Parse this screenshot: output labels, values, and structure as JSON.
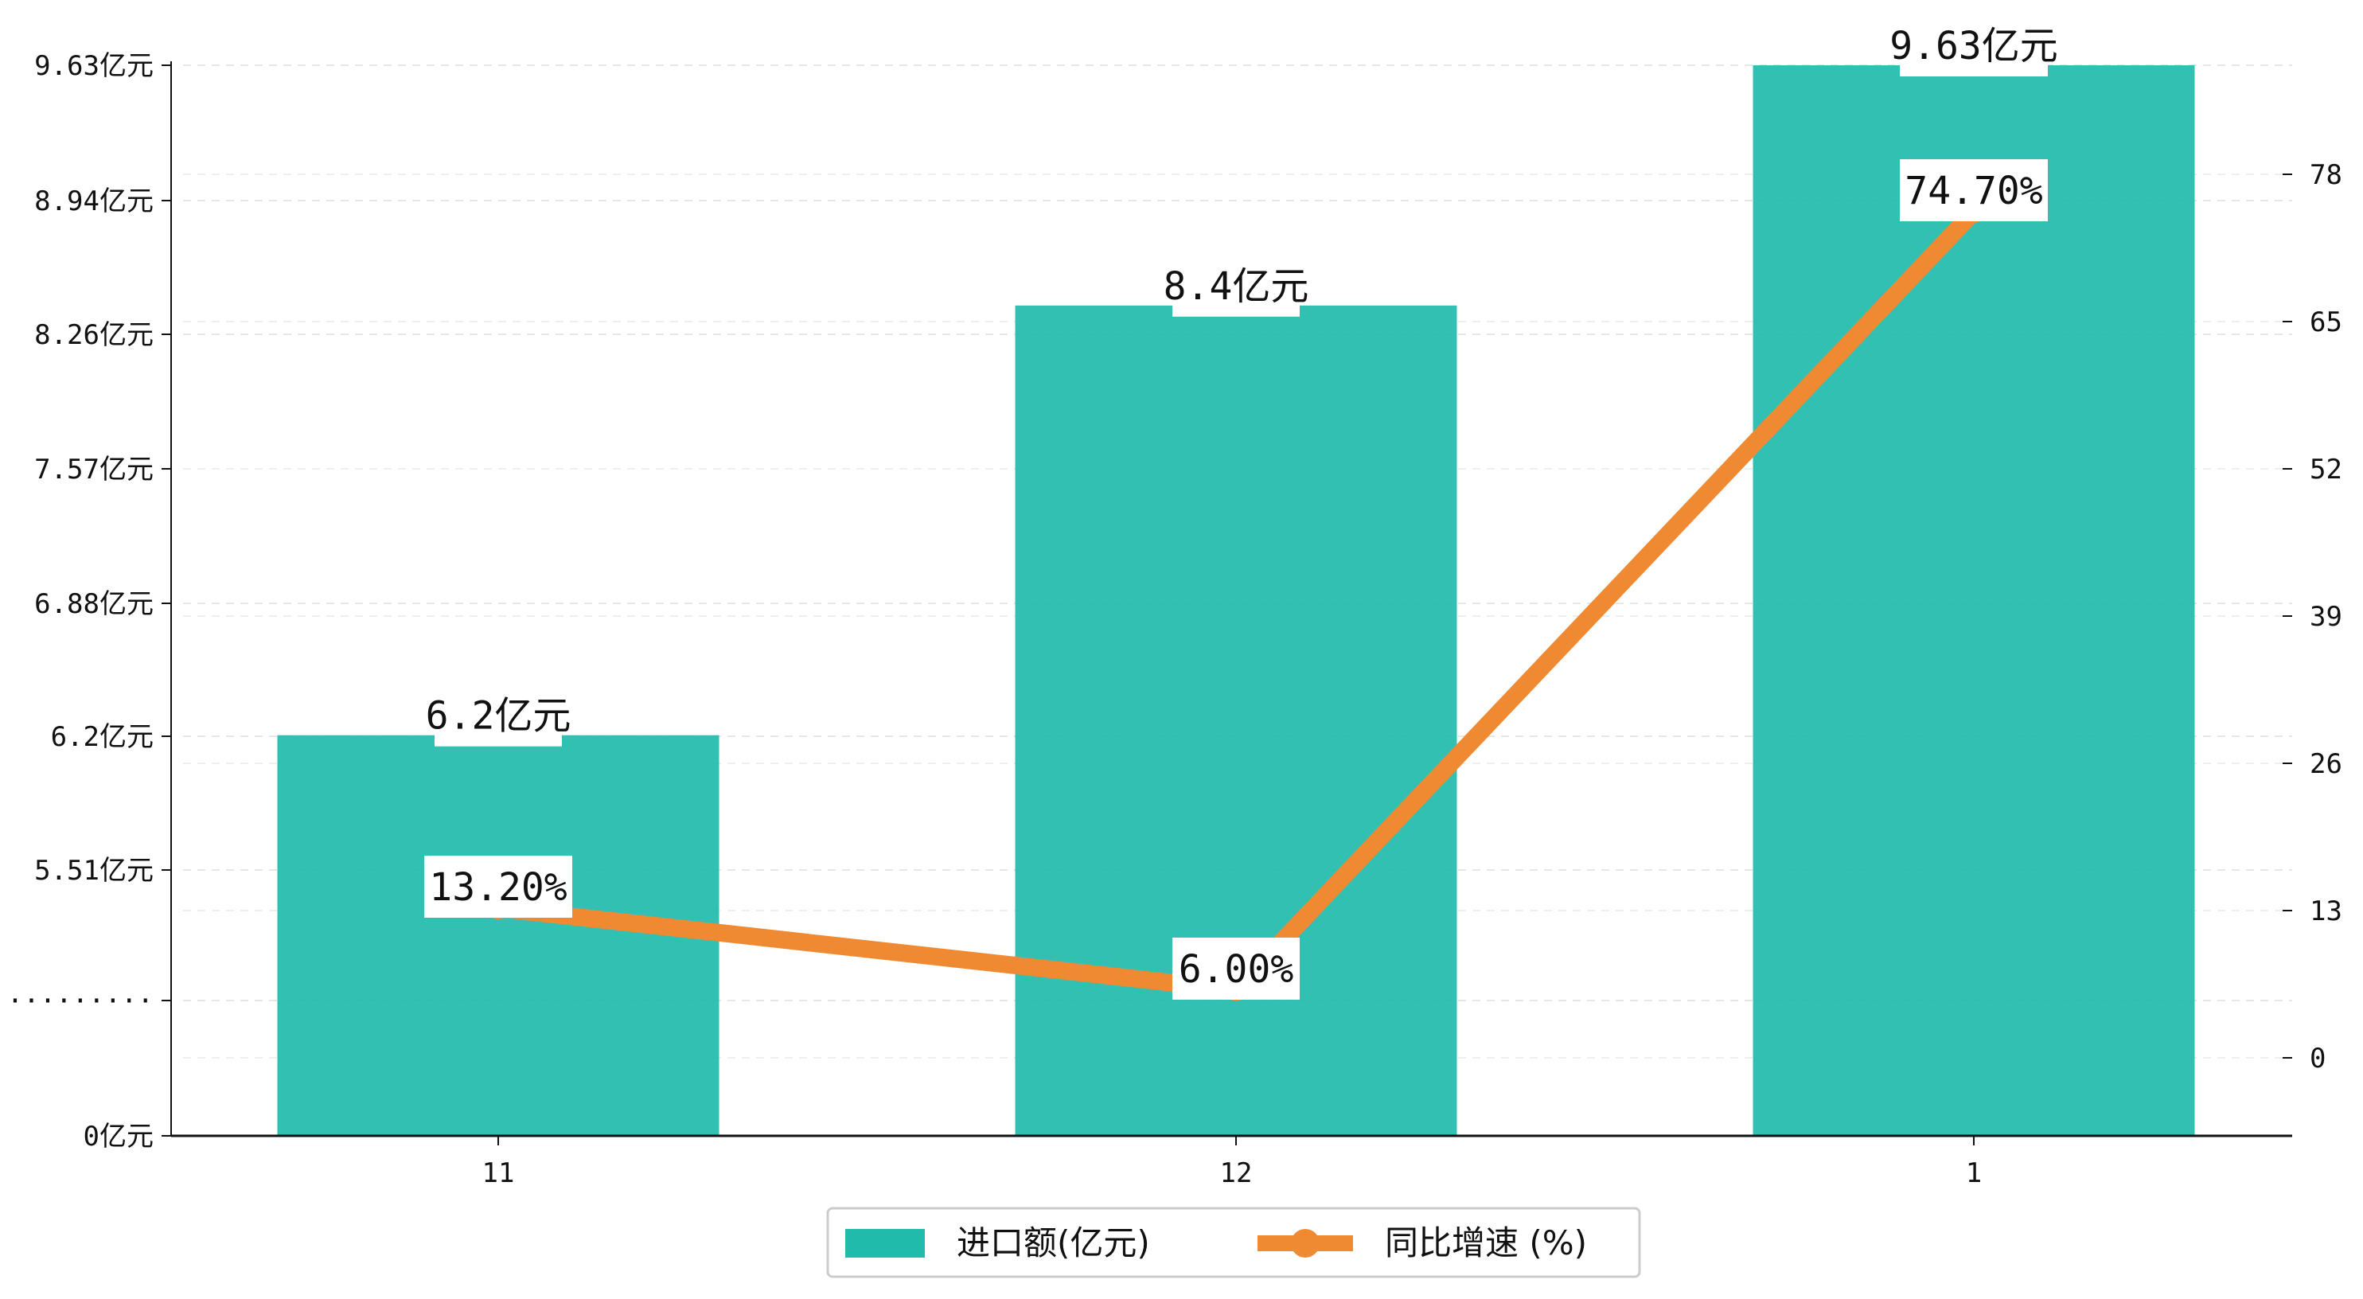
{
  "chart_data": {
    "type": "bar",
    "categories": [
      "11",
      "12",
      "1"
    ],
    "series": [
      {
        "name": "进口额(亿元)",
        "type": "bar",
        "axis": "left",
        "values": [
          6.2,
          8.4,
          9.63
        ],
        "labels": [
          "6.2亿元",
          "8.4亿元",
          "9.63亿元"
        ],
        "color": "#20bbab"
      },
      {
        "name": "同比增速 (%)",
        "type": "line",
        "axis": "right",
        "values": [
          13.2,
          6.0,
          74.7
        ],
        "labels": [
          "13.20%",
          "6.00%",
          "74.70%"
        ],
        "color": "#f08a32"
      }
    ],
    "left_axis": {
      "tick_labels": [
        "0亿元",
        "·········",
        "5.51亿元",
        "6.2亿元",
        "6.88亿元",
        "7.57亿元",
        "8.26亿元",
        "8.94亿元",
        "9.63亿元"
      ],
      "note": "broken axis between 0 and 5.51"
    },
    "right_axis": {
      "ylim": [
        -7,
        87
      ],
      "ticks": [
        0,
        13,
        26,
        39,
        52,
        65,
        78
      ]
    },
    "grid": "horizontal dashed",
    "legend": "bottom-center"
  }
}
